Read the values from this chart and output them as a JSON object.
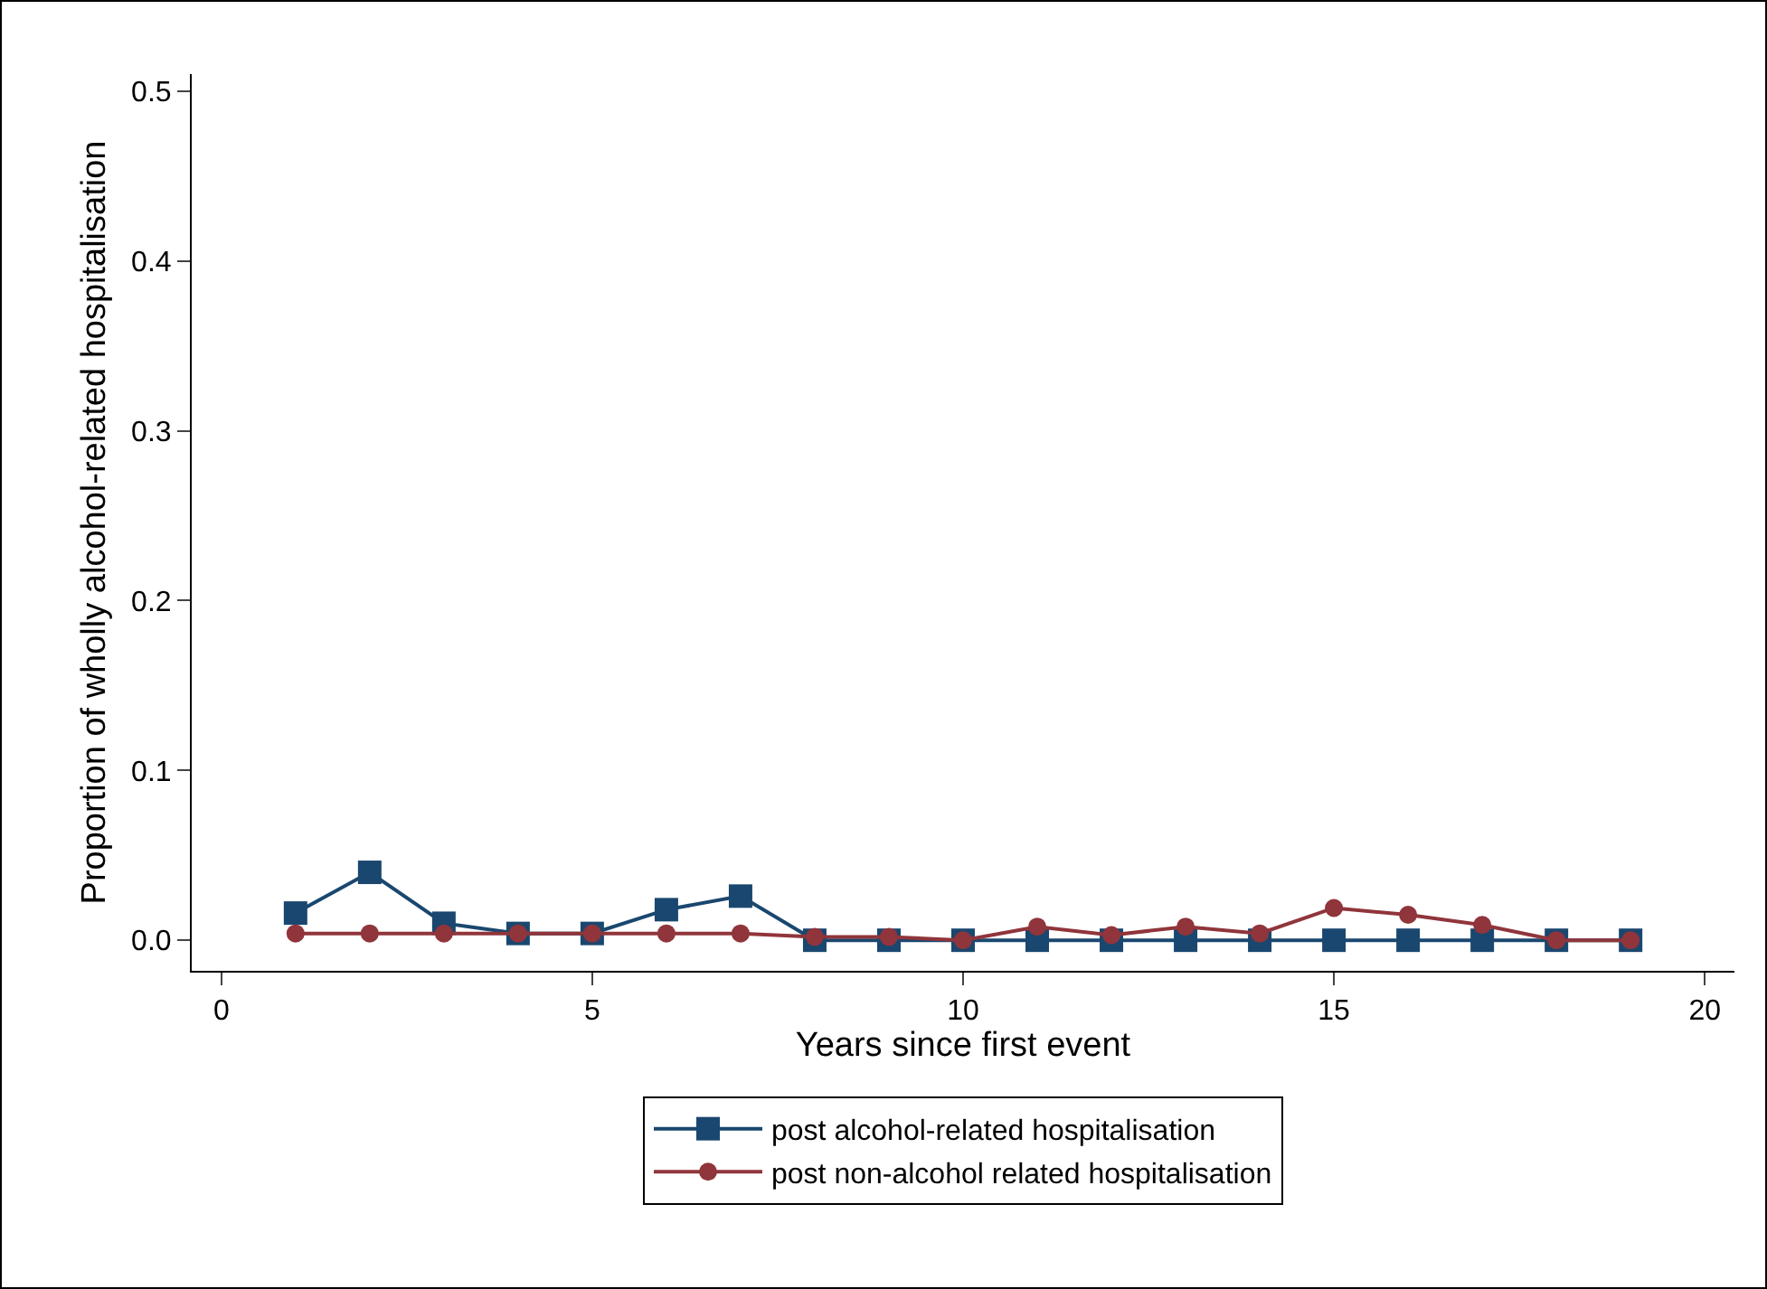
{
  "chart_data": {
    "type": "line",
    "xlabel": "Years since first event",
    "ylabel": "Proportion of wholly alcohol-related hospitalisation",
    "x": [
      1,
      2,
      3,
      4,
      5,
      6,
      7,
      8,
      9,
      10,
      11,
      12,
      13,
      14,
      15,
      16,
      17,
      18,
      19
    ],
    "series": [
      {
        "name": "post alcohol-related hospitalisation",
        "color": "#1a476f",
        "marker": "square",
        "values": [
          0.016,
          0.04,
          0.01,
          0.004,
          0.004,
          0.018,
          0.026,
          0,
          0,
          0,
          0,
          0,
          0,
          0,
          0,
          0,
          0,
          0,
          0
        ]
      },
      {
        "name": "post non-alcohol related hospitalisation",
        "color": "#90353b",
        "marker": "circle",
        "values": [
          0.004,
          0.004,
          0.004,
          0.004,
          0.004,
          0.004,
          0.004,
          0.002,
          0.002,
          0,
          0.008,
          0.003,
          0.008,
          0.004,
          0.019,
          0.015,
          0.009,
          0,
          0
        ]
      }
    ],
    "xlim": [
      -0.4,
      20.4
    ],
    "xticks": [
      0,
      5,
      10,
      15,
      20
    ],
    "ylim": [
      -0.018,
      0.51
    ],
    "yticks": [
      {
        "value": 0,
        "label": "0.0"
      },
      0.1,
      0.2,
      0.3,
      0.4,
      0.5
    ],
    "grid": false,
    "legend": "bottom",
    "line_style": "solid"
  }
}
